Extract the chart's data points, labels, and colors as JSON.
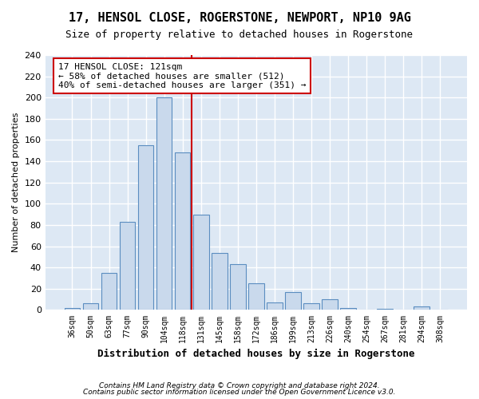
{
  "title": "17, HENSOL CLOSE, ROGERSTONE, NEWPORT, NP10 9AG",
  "subtitle": "Size of property relative to detached houses in Rogerstone",
  "xlabel": "Distribution of detached houses by size in Rogerstone",
  "ylabel": "Number of detached properties",
  "bins": [
    "36sqm",
    "50sqm",
    "63sqm",
    "77sqm",
    "90sqm",
    "104sqm",
    "118sqm",
    "131sqm",
    "145sqm",
    "158sqm",
    "172sqm",
    "186sqm",
    "199sqm",
    "213sqm",
    "226sqm",
    "240sqm",
    "254sqm",
    "267sqm",
    "281sqm",
    "294sqm",
    "308sqm"
  ],
  "values": [
    2,
    6,
    35,
    83,
    155,
    200,
    148,
    90,
    54,
    43,
    25,
    7,
    17,
    6,
    10,
    2,
    0,
    1,
    0,
    3,
    0
  ],
  "bar_color": "#c9d9ec",
  "bar_edge_color": "#5b8dc0",
  "vline_x": 6.5,
  "vline_color": "#cc0000",
  "annotation_text": "17 HENSOL CLOSE: 121sqm\n← 58% of detached houses are smaller (512)\n40% of semi-detached houses are larger (351) →",
  "annotation_box_color": "#cc0000",
  "background_color": "#dde8f4",
  "grid_color": "#ffffff",
  "footer_line1": "Contains HM Land Registry data © Crown copyright and database right 2024.",
  "footer_line2": "Contains public sector information licensed under the Open Government Licence v3.0.",
  "ylim": [
    0,
    240
  ],
  "yticks": [
    0,
    20,
    40,
    60,
    80,
    100,
    120,
    140,
    160,
    180,
    200,
    220,
    240
  ]
}
